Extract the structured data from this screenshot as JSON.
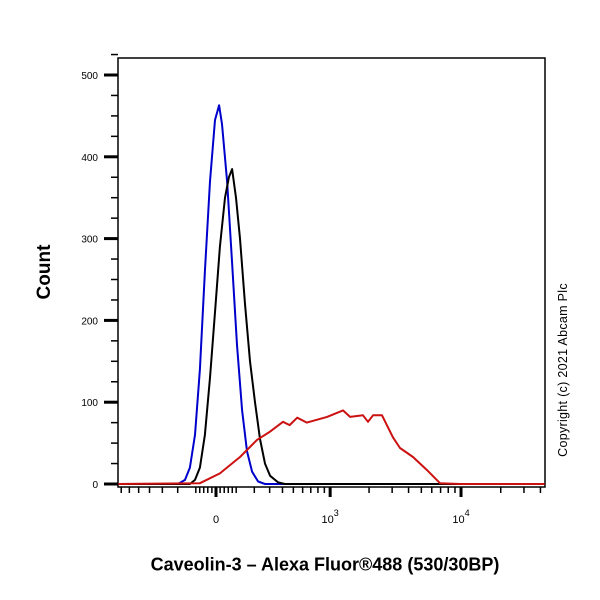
{
  "chart_data": {
    "type": "line",
    "title": "",
    "xlabel": "Caveolin-3 – Alexa Fluor®488 (530/30BP)",
    "ylabel": "Count",
    "x_scale": "biexponential",
    "xlim": [
      -740,
      43000
    ],
    "ylim": [
      0,
      525
    ],
    "y_ticks": [
      0,
      100,
      200,
      300,
      400,
      500
    ],
    "x_ticks": [
      {
        "value": 0,
        "label": "0",
        "exp": ""
      },
      {
        "value": 1000,
        "label": "10",
        "exp": "3"
      },
      {
        "value": 10000,
        "label": "10",
        "exp": "4"
      }
    ],
    "grid": false,
    "legend": "none",
    "series": [
      {
        "color": "#0000cc",
        "points": [
          [
            -740,
            0
          ],
          [
            -198,
            0
          ],
          [
            -158,
            5
          ],
          [
            -131,
            20
          ],
          [
            -104,
            60
          ],
          [
            -79,
            140
          ],
          [
            -54,
            260
          ],
          [
            -29,
            370
          ],
          [
            -5,
            445
          ],
          [
            15,
            463
          ],
          [
            29,
            440
          ],
          [
            54,
            370
          ],
          [
            79,
            270
          ],
          [
            104,
            170
          ],
          [
            131,
            90
          ],
          [
            158,
            40
          ],
          [
            187,
            15
          ],
          [
            223,
            3
          ],
          [
            268,
            0
          ],
          [
            43000,
            0
          ]
        ]
      },
      {
        "color": "#000000",
        "points": [
          [
            -740,
            0
          ],
          [
            -131,
            0
          ],
          [
            -104,
            5
          ],
          [
            -79,
            20
          ],
          [
            -54,
            60
          ],
          [
            -29,
            130
          ],
          [
            -5,
            210
          ],
          [
            19,
            290
          ],
          [
            44,
            350
          ],
          [
            63,
            375
          ],
          [
            79,
            385
          ],
          [
            99,
            350
          ],
          [
            120,
            300
          ],
          [
            147,
            220
          ],
          [
            175,
            150
          ],
          [
            204,
            100
          ],
          [
            235,
            55
          ],
          [
            268,
            25
          ],
          [
            303,
            10
          ],
          [
            364,
            2
          ],
          [
            420,
            0
          ],
          [
            43000,
            0
          ]
        ]
      },
      {
        "color": "#cc1111",
        "points": [
          [
            -740,
            0
          ],
          [
            -79,
            1
          ],
          [
            19,
            13
          ],
          [
            120,
            33
          ],
          [
            217,
            54
          ],
          [
            303,
            64
          ],
          [
            404,
            76
          ],
          [
            464,
            72
          ],
          [
            540,
            81
          ],
          [
            651,
            75
          ],
          [
            945,
            82
          ],
          [
            1259,
            90
          ],
          [
            1429,
            82
          ],
          [
            1796,
            84
          ],
          [
            1963,
            76
          ],
          [
            2143,
            84
          ],
          [
            2513,
            84
          ],
          [
            3047,
            57
          ],
          [
            3444,
            44
          ],
          [
            4323,
            33
          ],
          [
            5518,
            17
          ],
          [
            6922,
            1
          ],
          [
            9813,
            0
          ],
          [
            43000,
            0
          ]
        ]
      }
    ]
  },
  "copyright": "Copyright (c) 2021 Abcam Plc"
}
